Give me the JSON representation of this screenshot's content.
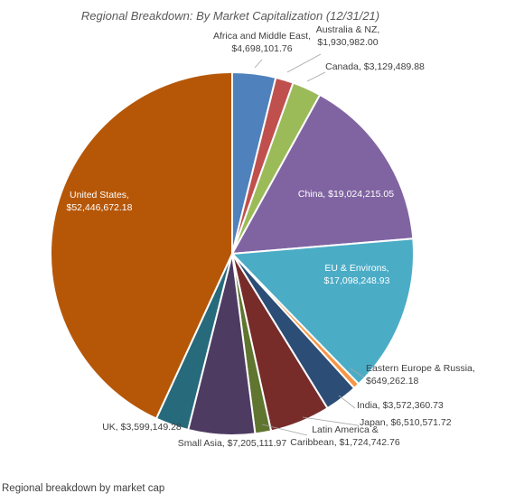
{
  "caption": "Regional breakdown by market cap",
  "chart_data": {
    "type": "pie",
    "title": "Regional Breakdown: By Market Capitalization (12/31/21)",
    "slices": [
      {
        "name": "Africa and Middle East",
        "value": 4698101.76,
        "label": [
          "Africa and Middle East,",
          "$4,698,101.76"
        ],
        "color": "#4f81bd"
      },
      {
        "name": "Australia & NZ",
        "value": 1930982.0,
        "label": [
          "Australia & NZ,",
          "$1,930,982.00"
        ],
        "color": "#c0504d"
      },
      {
        "name": "Canada",
        "value": 3129489.88,
        "label": [
          "Canada, $3,129,489.88"
        ],
        "color": "#9bbb59"
      },
      {
        "name": "China",
        "value": 19024215.05,
        "label": [
          "China, $19,024,215.05"
        ],
        "color": "#8064a2"
      },
      {
        "name": "EU & Environs",
        "value": 17098248.93,
        "label": [
          "EU & Environs,",
          "$17,098,248.93"
        ],
        "color": "#4bacc6"
      },
      {
        "name": "Eastern Europe & Russia",
        "value": 649262.18,
        "label": [
          "Eastern Europe & Russia,",
          "$649,262.18"
        ],
        "color": "#f79646"
      },
      {
        "name": "India",
        "value": 3572360.73,
        "label": [
          "India, $3,572,360.73"
        ],
        "color": "#2c4d75"
      },
      {
        "name": "Japan",
        "value": 6510571.72,
        "label": [
          "Japan, $6,510,571.72"
        ],
        "color": "#772c2a"
      },
      {
        "name": "Latin America & Caribbean",
        "value": 1724742.76,
        "label": [
          "Latin America &",
          "Caribbean, $1,724,742.76"
        ],
        "color": "#5f7530"
      },
      {
        "name": "Small Asia",
        "value": 7205111.97,
        "label": [
          "Small Asia, $7,205,111.97"
        ],
        "color": "#4d3b62"
      },
      {
        "name": "UK",
        "value": 3599149.28,
        "label": [
          "UK, $3,599,149.28"
        ],
        "color": "#276a7c"
      },
      {
        "name": "United States",
        "value": 52446672.18,
        "label": [
          "United States,",
          "$52,446,672.18"
        ],
        "color": "#b65708"
      }
    ]
  }
}
